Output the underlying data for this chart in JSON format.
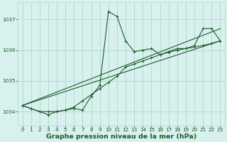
{
  "title": "Graphe pression niveau de la mer (hPa)",
  "xlim": [
    -0.5,
    23.5
  ],
  "ylim": [
    1033.55,
    1037.55
  ],
  "yticks": [
    1034,
    1035,
    1036,
    1037
  ],
  "xticks": [
    0,
    1,
    2,
    3,
    4,
    5,
    6,
    7,
    8,
    9,
    10,
    11,
    12,
    13,
    14,
    15,
    16,
    17,
    18,
    19,
    20,
    21,
    22,
    23
  ],
  "bg_color": "#d8f0ee",
  "grid_color": "#b0d8cc",
  "line_color": "#1a5c28",
  "line1_x": [
    0,
    1,
    2,
    3,
    4,
    5,
    6,
    7,
    8,
    9,
    10,
    11,
    12,
    13,
    14,
    15,
    16,
    17,
    18,
    19,
    20,
    21,
    22,
    23
  ],
  "line1_y": [
    1034.2,
    1034.1,
    1034.0,
    1033.9,
    1034.0,
    1034.05,
    1034.1,
    1034.05,
    1034.5,
    1034.85,
    1037.25,
    1037.1,
    1036.3,
    1035.95,
    1036.0,
    1036.05,
    1035.85,
    1035.95,
    1036.05,
    1036.05,
    1036.15,
    1036.7,
    1036.7,
    1036.3
  ],
  "line2_x": [
    0,
    1,
    2,
    3,
    4,
    5,
    6,
    7,
    8,
    9,
    10,
    11,
    12,
    13,
    14,
    15,
    16,
    17,
    18,
    19,
    20,
    21,
    22,
    23
  ],
  "line2_y": [
    1034.2,
    1034.1,
    1034.0,
    1034.0,
    1034.0,
    1034.05,
    1034.15,
    1034.35,
    1034.55,
    1034.75,
    1034.95,
    1035.15,
    1035.45,
    1035.55,
    1035.65,
    1035.75,
    1035.85,
    1035.93,
    1036.0,
    1036.05,
    1036.1,
    1036.15,
    1036.22,
    1036.3
  ],
  "line3_x": [
    0,
    23
  ],
  "line3_y": [
    1034.2,
    1036.3
  ],
  "line4_x": [
    0,
    23
  ],
  "line4_y": [
    1034.2,
    1036.7
  ],
  "tick_fontsize": 5.2,
  "xlabel_fontsize": 6.8
}
